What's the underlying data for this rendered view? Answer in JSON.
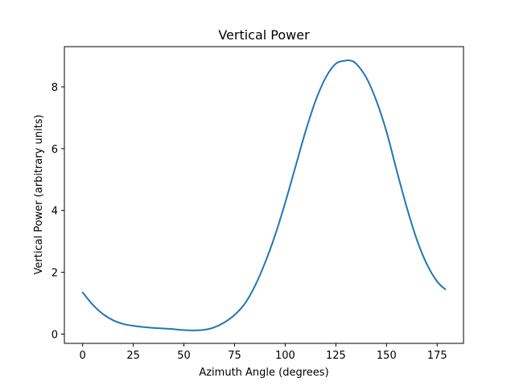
{
  "chart_data": {
    "type": "line",
    "title": "Vertical Power",
    "xlabel": "Azimuth Angle (degrees)",
    "ylabel": "Vertical Power (arbitrary units)",
    "xlim": [
      -9,
      188
    ],
    "ylim": [
      -0.3,
      9.3
    ],
    "xticks": [
      0,
      25,
      50,
      75,
      100,
      125,
      150,
      175
    ],
    "yticks": [
      0,
      2,
      4,
      6,
      8
    ],
    "grid": false,
    "series": [
      {
        "color": "#1f77b4",
        "x": [
          0,
          5,
          10,
          15,
          20,
          25,
          30,
          35,
          40,
          45,
          50,
          55,
          60,
          65,
          70,
          75,
          80,
          85,
          90,
          95,
          100,
          105,
          110,
          115,
          120,
          125,
          130,
          132,
          135,
          140,
          145,
          150,
          155,
          160,
          165,
          170,
          175,
          179
        ],
        "values": [
          1.35,
          0.95,
          0.65,
          0.45,
          0.33,
          0.27,
          0.23,
          0.2,
          0.18,
          0.16,
          0.13,
          0.12,
          0.14,
          0.22,
          0.38,
          0.62,
          0.98,
          1.55,
          2.3,
          3.2,
          4.25,
          5.4,
          6.55,
          7.55,
          8.3,
          8.75,
          8.85,
          8.85,
          8.75,
          8.3,
          7.55,
          6.55,
          5.3,
          4.1,
          3.05,
          2.25,
          1.7,
          1.45
        ]
      }
    ]
  }
}
